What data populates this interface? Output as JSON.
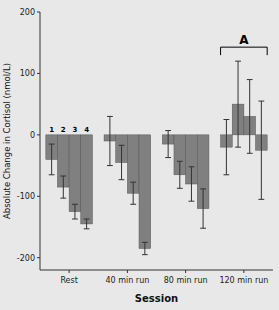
{
  "chart_data": {
    "type": "bar",
    "xlabel": "Session",
    "ylabel": "Absolute Change in Cortisol (nmol/L)",
    "categories": [
      "Rest",
      "40 min run",
      "80 min run",
      "120 min run"
    ],
    "series": [
      {
        "name": "1",
        "color": "#808080",
        "values": [
          -40,
          -10,
          -15,
          -20
        ],
        "errors": [
          25,
          40,
          22,
          45
        ]
      },
      {
        "name": "2",
        "color": "#808080",
        "values": [
          -85,
          -45,
          -65,
          50
        ],
        "errors": [
          18,
          28,
          22,
          70
        ]
      },
      {
        "name": "3",
        "color": "#808080",
        "values": [
          -125,
          -95,
          -80,
          30
        ],
        "errors": [
          12,
          18,
          28,
          60
        ]
      },
      {
        "name": "4",
        "color": "#808080",
        "values": [
          -145,
          -185,
          -120,
          -25
        ],
        "errors": [
          8,
          10,
          32,
          80
        ]
      }
    ],
    "annotation": "A",
    "ylim": [
      -220,
      200
    ],
    "yticks": [
      -200,
      -100,
      0,
      100,
      200
    ]
  }
}
